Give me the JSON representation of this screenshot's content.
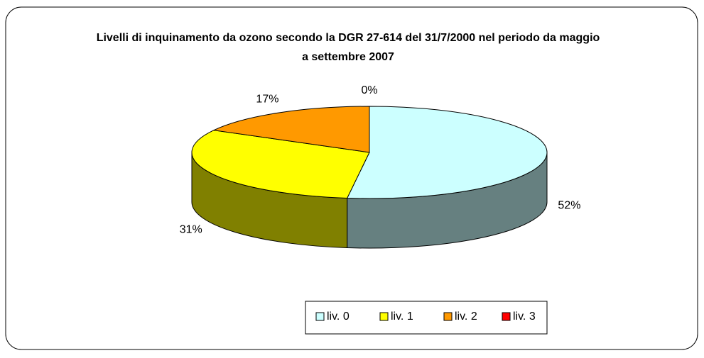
{
  "chart_data": {
    "type": "pie",
    "title": "Livelli di inquinamento da ozono secondo la DGR 27-614 del 31/7/2000 nel periodo da maggio a settembre 2007",
    "categories": [
      "liv. 0",
      "liv. 1",
      "liv. 2",
      "liv. 3"
    ],
    "values": [
      52,
      31,
      17,
      0
    ],
    "value_labels": [
      "52%",
      "31%",
      "17%",
      "0%"
    ],
    "colors": [
      "#ccffff",
      "#ffff00",
      "#ff9900",
      "#ff0000"
    ],
    "legend": "bottom"
  }
}
